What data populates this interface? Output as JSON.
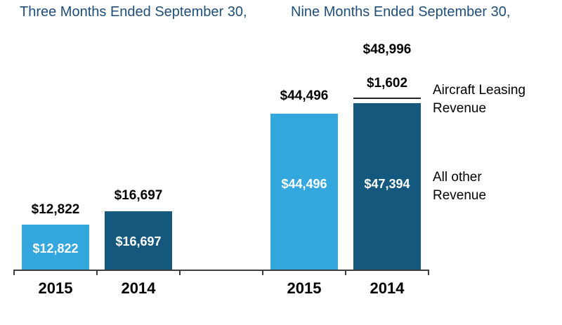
{
  "chart_data": {
    "type": "bar",
    "title": "",
    "group_titles": [
      "Three Months Ended September 30,",
      "Nine Months Ended September 30,"
    ],
    "legend": [
      {
        "label": "Aircraft Leasing Revenue"
      },
      {
        "label": "All other Revenue"
      }
    ],
    "colors": {
      "light_blue": "#33A7DE",
      "dark_blue": "#15587E",
      "header_text": "#1F4E79"
    },
    "layout": {
      "y_axis_visible": false,
      "value_labels": "inside and above bars",
      "legend_position": "right"
    },
    "bars": [
      {
        "year": "2015",
        "period": "Three Months Ended September 30",
        "series": "All other Revenue",
        "value": 12822,
        "value_label": "$12,822"
      },
      {
        "year": "2014",
        "period": "Three Months Ended September 30",
        "series": "All other Revenue",
        "value": 16697,
        "value_label": "$16,697"
      },
      {
        "year": "2015",
        "period": "Nine Months Ended September 30",
        "series": "All other Revenue",
        "value": 44496,
        "value_label": "$44,496"
      },
      {
        "year": "2014",
        "period": "Nine Months Ended September 30",
        "total": 48996,
        "total_label": "$48,996",
        "segments": [
          {
            "series": "Aircraft Leasing Revenue",
            "value": 1602,
            "label": "$1,602"
          },
          {
            "series": "All other Revenue",
            "value": 47394,
            "label": "$47,394"
          }
        ]
      }
    ]
  }
}
